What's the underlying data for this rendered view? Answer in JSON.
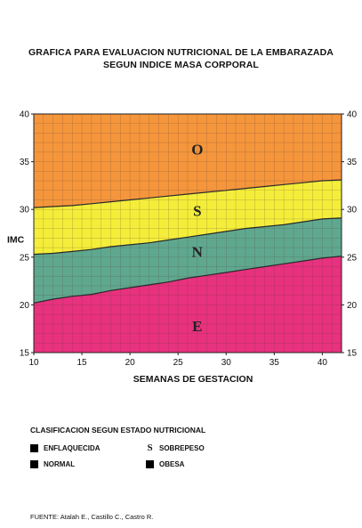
{
  "title": {
    "line1": "GRAFICA PARA EVALUACION NUTRICIONAL DE LA EMBARAZADA",
    "line2": "SEGUN INDICE MASA CORPORAL"
  },
  "chart_data": {
    "type": "area",
    "xlabel": "SEMANAS DE GESTACION",
    "ylabel": "IMC",
    "xlim": [
      10,
      42
    ],
    "ylim": [
      15,
      40
    ],
    "x_ticks": [
      10,
      15,
      20,
      25,
      30,
      35,
      40
    ],
    "y_ticks": [
      15,
      20,
      25,
      30,
      35,
      40
    ],
    "grid": true,
    "x": [
      10,
      12,
      14,
      16,
      18,
      20,
      22,
      24,
      26,
      28,
      30,
      32,
      34,
      36,
      38,
      40,
      42
    ],
    "boundaries": [
      {
        "between": [
          "E",
          "N"
        ],
        "values": [
          20.2,
          20.6,
          20.9,
          21.1,
          21.5,
          21.8,
          22.1,
          22.4,
          22.8,
          23.1,
          23.4,
          23.7,
          24.0,
          24.3,
          24.6,
          24.9,
          25.1
        ]
      },
      {
        "between": [
          "N",
          "S"
        ],
        "values": [
          25.3,
          25.4,
          25.6,
          25.8,
          26.1,
          26.3,
          26.5,
          26.8,
          27.1,
          27.4,
          27.7,
          28.0,
          28.2,
          28.4,
          28.7,
          29.0,
          29.1
        ]
      },
      {
        "between": [
          "S",
          "O"
        ],
        "values": [
          30.2,
          30.3,
          30.4,
          30.6,
          30.8,
          31.0,
          31.2,
          31.4,
          31.6,
          31.8,
          32.0,
          32.2,
          32.4,
          32.6,
          32.8,
          33.0,
          33.1
        ]
      }
    ],
    "zones": [
      {
        "letter": "E",
        "color": "#e8317f",
        "label_x": 27,
        "label_y": 17.8
      },
      {
        "letter": "N",
        "color": "#5fa88f",
        "label_x": 27,
        "label_y": 25.6
      },
      {
        "letter": "S",
        "color": "#f4ee3a",
        "label_x": 27,
        "label_y": 29.9
      },
      {
        "letter": "O",
        "color": "#f5963c",
        "label_x": 27,
        "label_y": 36.3
      }
    ]
  },
  "legend": {
    "title": "CLASIFICACION SEGUN ESTADO NUTRICIONAL",
    "items": [
      {
        "symbol": "",
        "label": "ENFLAQUECIDA"
      },
      {
        "symbol": "S",
        "label": "SOBREPESO"
      },
      {
        "symbol": "",
        "label": "NORMAL"
      },
      {
        "symbol": "",
        "label": "OBESA"
      }
    ]
  },
  "footer": "FUENTE: Atalah E., Castillo C., Castro R."
}
